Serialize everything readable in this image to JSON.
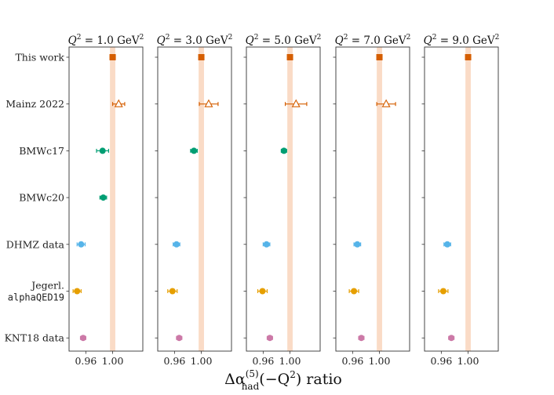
{
  "chart_data": {
    "type": "scatter",
    "title": "",
    "xlabel": "Δα(5) had(−Q²) ratio",
    "xlabel_parts": {
      "symbol": "Δα",
      "superscript": "(5)",
      "subscript": "had",
      "argument": "(−Q",
      "argument_sup": "2",
      "suffix": ") ratio"
    },
    "ylabel": "",
    "xlim": [
      0.935,
      1.045
    ],
    "xticks": [
      0.96,
      1.0
    ],
    "xtick_labels": [
      "0.96",
      "1.00"
    ],
    "grid": false,
    "reference_band": {
      "center": 1.0,
      "halfwidth": 0.004,
      "color": "#fadbc6"
    },
    "panels": [
      {
        "title_base": "Q",
        "title_sup": "2",
        "title_value": " = 1.0 GeV",
        "title_unit_sup": "2"
      },
      {
        "title_base": "Q",
        "title_sup": "2",
        "title_value": " = 3.0 GeV",
        "title_unit_sup": "2"
      },
      {
        "title_base": "Q",
        "title_sup": "2",
        "title_value": " = 5.0 GeV",
        "title_unit_sup": "2"
      },
      {
        "title_base": "Q",
        "title_sup": "2",
        "title_value": " = 7.0 GeV",
        "title_unit_sup": "2"
      },
      {
        "title_base": "Q",
        "title_sup": "2",
        "title_value": " = 9.0 GeV",
        "title_unit_sup": "2"
      }
    ],
    "categories": [
      {
        "label": "This work"
      },
      {
        "label": "Mainz 2022"
      },
      {
        "label": "BMWc17"
      },
      {
        "label": "BMWc20"
      },
      {
        "label": "DHMZ data"
      },
      {
        "label": "Jegerl.",
        "label2": "alphaQED19"
      },
      {
        "label": "KNT18 data"
      }
    ],
    "series": [
      {
        "name": "This work",
        "color": "#d55e00",
        "marker": "square",
        "values": [
          1.0,
          1.0,
          1.0,
          1.0,
          1.0
        ],
        "errors": [
          0.004,
          0.003,
          0.0015,
          0.001,
          0.0008
        ]
      },
      {
        "name": "Mainz 2022",
        "color": "#d55e00",
        "marker": "triangle-open",
        "values": [
          1.009,
          1.011,
          1.009,
          1.01,
          null
        ],
        "errors": [
          0.009,
          0.014,
          0.016,
          0.014,
          null
        ]
      },
      {
        "name": "BMWc17",
        "color": "#009e73",
        "marker": "circle",
        "values": [
          0.985,
          0.989,
          0.991,
          null,
          null
        ],
        "errors": [
          0.009,
          0.005,
          0.004,
          null,
          null
        ]
      },
      {
        "name": "BMWc20",
        "color": "#009e73",
        "marker": "circle",
        "values": [
          0.986,
          null,
          null,
          null,
          null
        ],
        "errors": [
          0.005,
          null,
          null,
          null,
          null
        ]
      },
      {
        "name": "DHMZ data",
        "color": "#56b4e9",
        "marker": "circle",
        "values": [
          0.953,
          0.963,
          0.965,
          0.967,
          0.969
        ],
        "errors": [
          0.006,
          0.005,
          0.005,
          0.005,
          0.005
        ]
      },
      {
        "name": "Jegerl. alphaQED19",
        "color": "#e69f00",
        "marker": "circle",
        "values": [
          0.947,
          0.957,
          0.959,
          0.962,
          0.963
        ],
        "errors": [
          0.006,
          0.007,
          0.007,
          0.007,
          0.007
        ]
      },
      {
        "name": "KNT18 data",
        "color": "#cc79a7",
        "marker": "circle",
        "values": [
          0.956,
          0.967,
          0.97,
          0.973,
          0.975
        ],
        "errors": [
          0.004,
          0.004,
          0.004,
          0.004,
          0.004
        ]
      }
    ]
  }
}
